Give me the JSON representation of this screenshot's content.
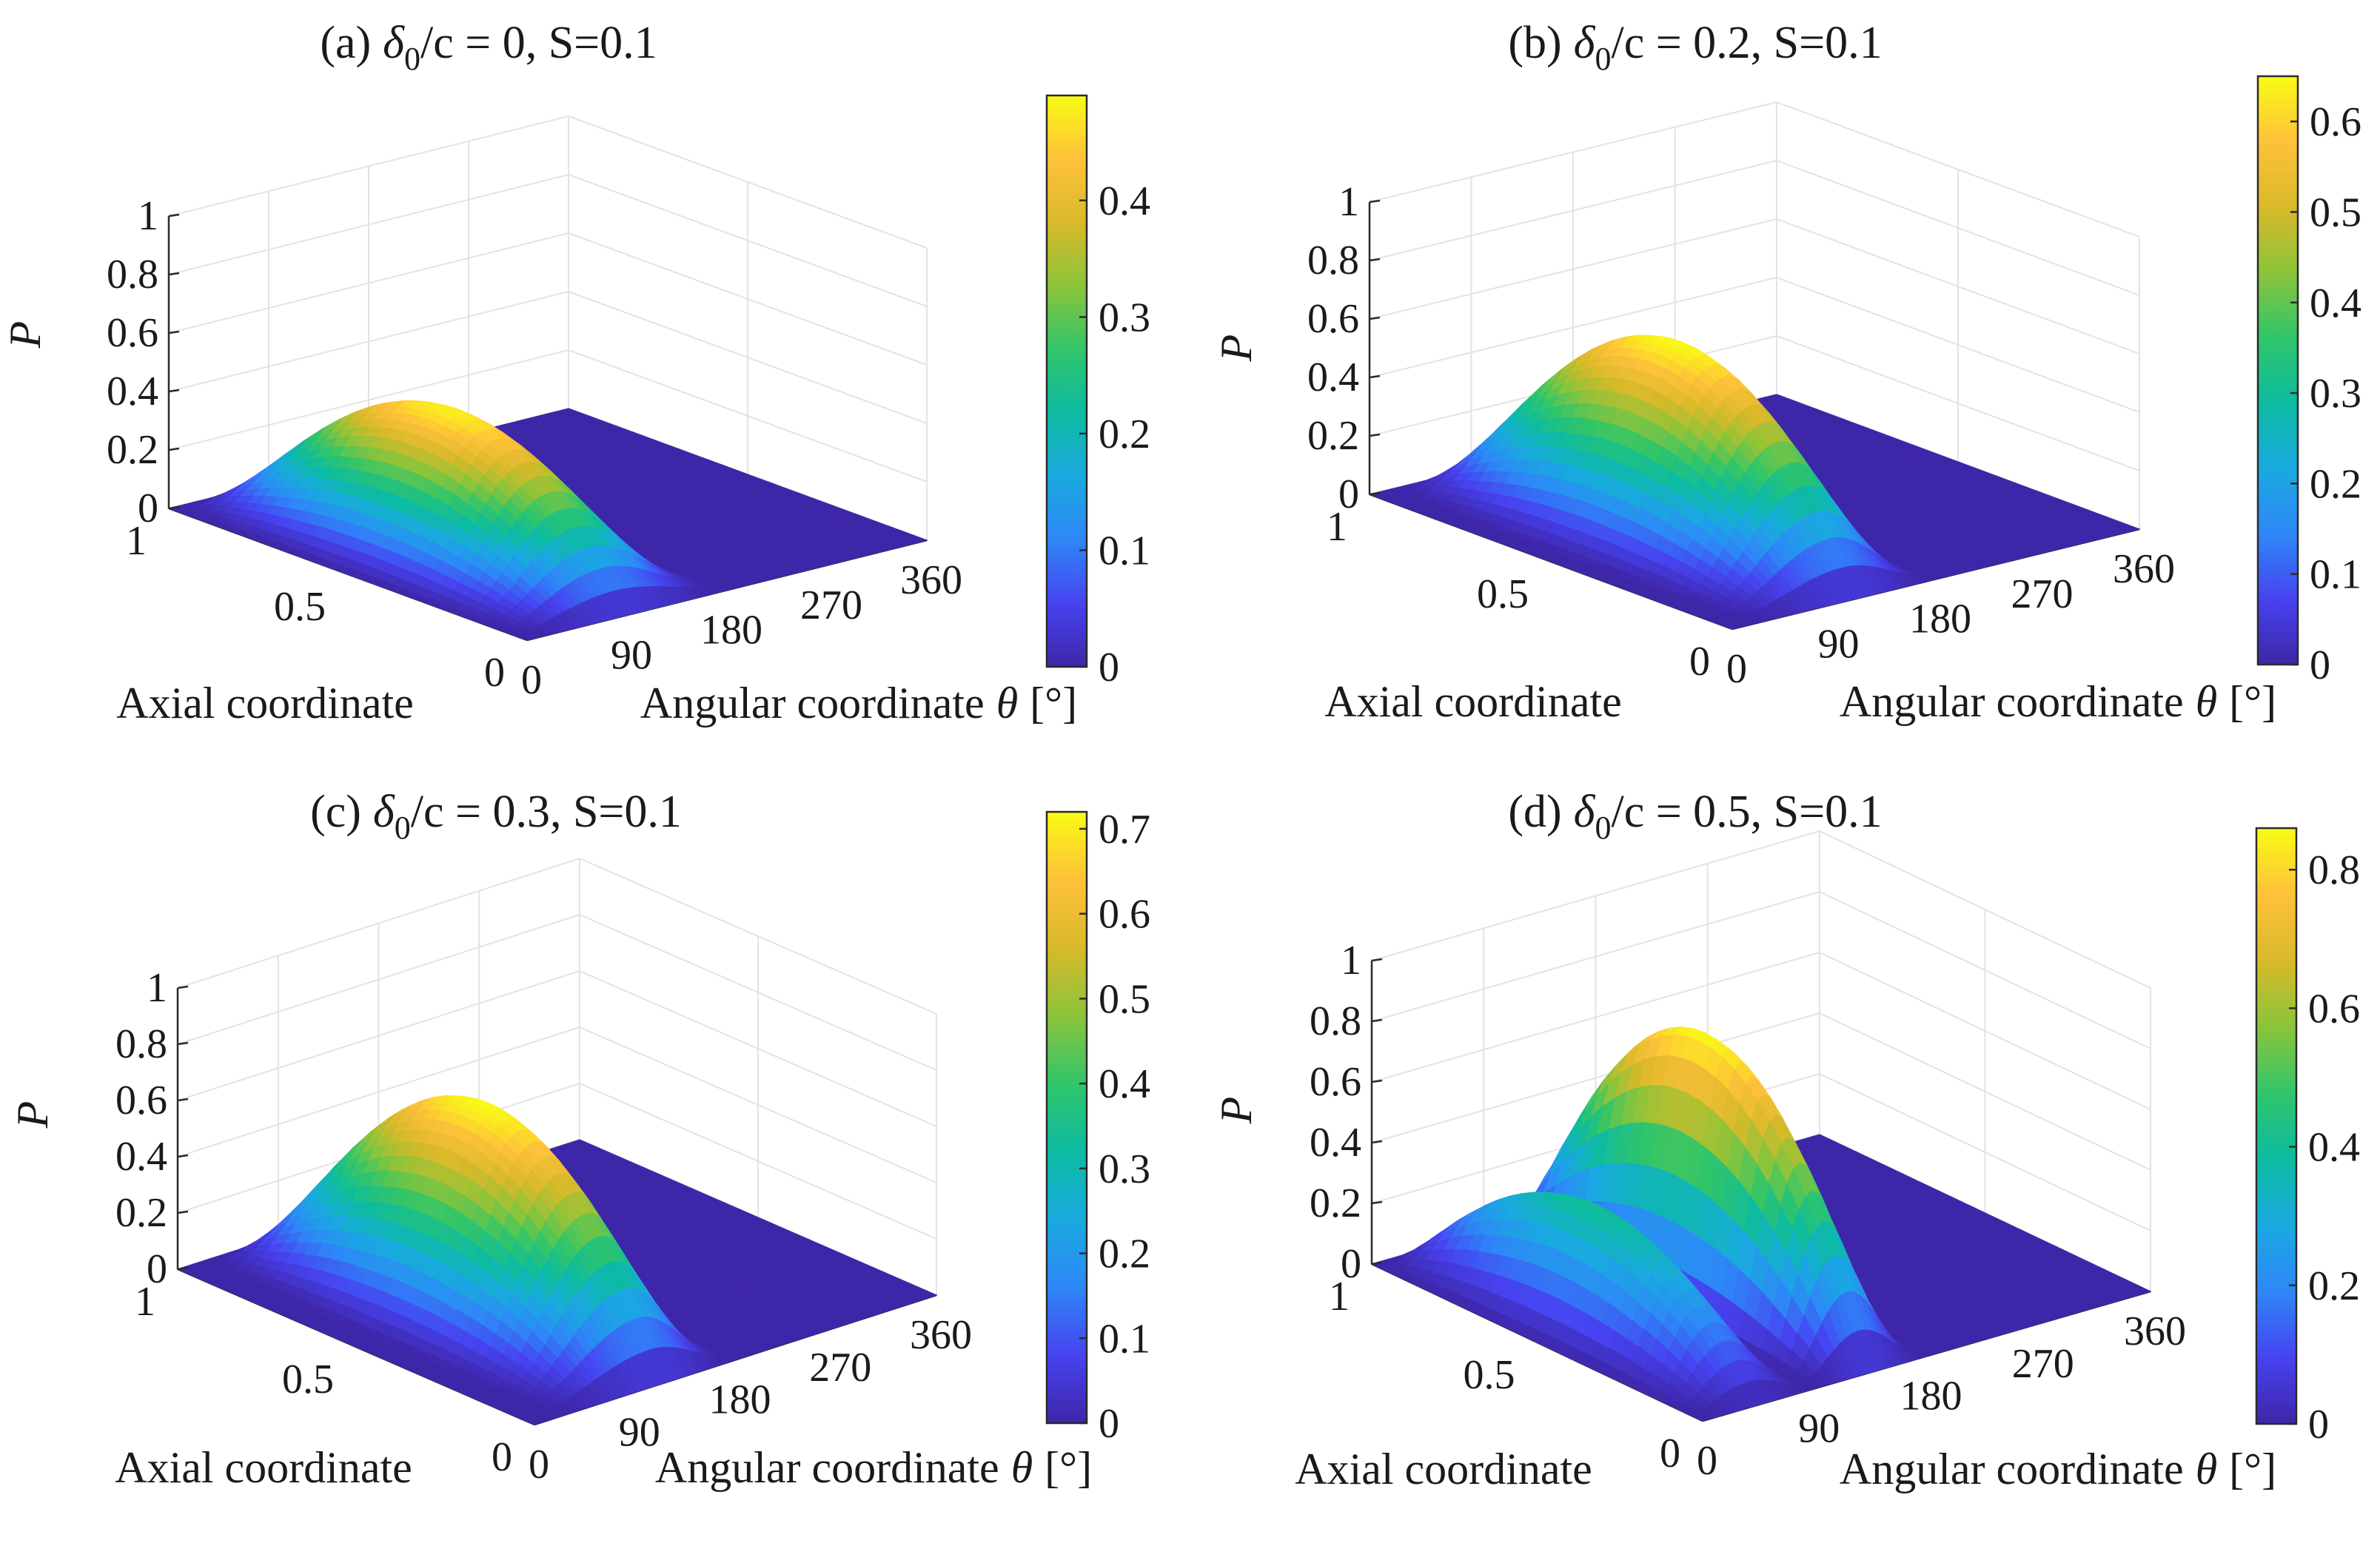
{
  "figure": {
    "axial_label": "Axial coordinate",
    "angular_label": "Angular coordinate",
    "theta_symbol": "θ",
    "degree_unit": "[°]",
    "p_label": "P",
    "colormap": [
      "#3e26a8",
      "#4743f0",
      "#2e87f7",
      "#1aa9e0",
      "#0cbba1",
      "#31c56a",
      "#8cc43a",
      "#d9b92a",
      "#fec13a",
      "#f9fb15"
    ]
  },
  "chart_data": [
    {
      "type": "surface",
      "panel": "a",
      "title_prefix": "(a)",
      "delta_symbol": "δ",
      "delta_sub": "0",
      "title_suffix": "/c = 0, S=0.1",
      "delta_over_c": 0,
      "S": 0.1,
      "xlabel": "Angular coordinate θ [°]",
      "ylabel": "Axial coordinate",
      "zlabel": "P",
      "x_ticks": [
        "0",
        "90",
        "180",
        "270",
        "360"
      ],
      "y_ticks": [
        "0",
        "0.5",
        "1"
      ],
      "z_ticks": [
        "0",
        "0.2",
        "0.4",
        "0.6",
        "0.8",
        "1"
      ],
      "xlim": [
        0,
        360
      ],
      "ylim": [
        0,
        1
      ],
      "zlim": [
        0,
        1
      ],
      "pressure_lobes": [
        {
          "theta_start": 0,
          "theta_end": 180,
          "peak_theta": 90,
          "peak_P": 0.48
        }
      ],
      "colorbar": {
        "range": [
          0,
          0.49
        ],
        "ticks": [
          "0",
          "0.1",
          "0.2",
          "0.3",
          "0.4"
        ]
      }
    },
    {
      "type": "surface",
      "panel": "b",
      "title_prefix": "(b)",
      "delta_symbol": "δ",
      "delta_sub": "0",
      "title_suffix": "/c = 0.2, S=0.1",
      "delta_over_c": 0.2,
      "S": 0.1,
      "xlabel": "Angular coordinate θ [°]",
      "ylabel": "Axial coordinate",
      "zlabel": "P",
      "x_ticks": [
        "0",
        "90",
        "180",
        "270",
        "360"
      ],
      "y_ticks": [
        "0",
        "0.5",
        "1"
      ],
      "z_ticks": [
        "0",
        "0.2",
        "0.4",
        "0.6",
        "0.8",
        "1"
      ],
      "xlim": [
        0,
        360
      ],
      "ylim": [
        0,
        1
      ],
      "zlim": [
        0,
        1
      ],
      "pressure_lobes": [
        {
          "theta_start": 15,
          "theta_end": 180,
          "peak_theta": 110,
          "peak_P": 0.65
        }
      ],
      "colorbar": {
        "range": [
          0,
          0.65
        ],
        "ticks": [
          "0",
          "0.1",
          "0.2",
          "0.3",
          "0.4",
          "0.5",
          "0.6"
        ]
      }
    },
    {
      "type": "surface",
      "panel": "c",
      "title_prefix": "(c)",
      "delta_symbol": "δ",
      "delta_sub": "0",
      "title_suffix": "/c = 0.3, S=0.1",
      "delta_over_c": 0.3,
      "S": 0.1,
      "xlabel": "Angular coordinate θ [°]",
      "ylabel": "Axial coordinate",
      "zlabel": "P",
      "x_ticks": [
        "0",
        "90",
        "180",
        "270",
        "360"
      ],
      "y_ticks": [
        "0",
        "0.5",
        "1"
      ],
      "z_ticks": [
        "0",
        "0.2",
        "0.4",
        "0.6",
        "0.8",
        "1"
      ],
      "xlim": [
        0,
        360
      ],
      "ylim": [
        0,
        1
      ],
      "zlim": [
        0,
        1
      ],
      "pressure_lobes": [
        {
          "theta_start": 20,
          "theta_end": 180,
          "peak_theta": 115,
          "peak_P": 0.72
        }
      ],
      "colorbar": {
        "range": [
          0,
          0.72
        ],
        "ticks": [
          "0",
          "0.1",
          "0.2",
          "0.3",
          "0.4",
          "0.5",
          "0.6",
          "0.7"
        ]
      }
    },
    {
      "type": "surface",
      "panel": "d",
      "title_prefix": "(d)",
      "delta_symbol": "δ",
      "delta_sub": "0",
      "title_suffix": "/c = 0.5, S=0.1",
      "delta_over_c": 0.5,
      "S": 0.1,
      "xlabel": "Angular coordinate θ [°]",
      "ylabel": "Axial coordinate",
      "zlabel": "P",
      "x_ticks": [
        "0",
        "90",
        "180",
        "270",
        "360"
      ],
      "y_ticks": [
        "0",
        "0.5",
        "1"
      ],
      "z_ticks": [
        "0",
        "0.2",
        "0.4",
        "0.6",
        "0.8",
        "1"
      ],
      "xlim": [
        0,
        360
      ],
      "ylim": [
        0,
        1
      ],
      "zlim": [
        0,
        1
      ],
      "pressure_lobes": [
        {
          "theta_start": 0,
          "theta_end": 90,
          "peak_theta": 45,
          "peak_P": 0.4
        },
        {
          "theta_start": 90,
          "theta_end": 180,
          "peak_theta": 135,
          "peak_P": 0.86
        }
      ],
      "colorbar": {
        "range": [
          0,
          0.86
        ],
        "ticks": [
          "0",
          "0.2",
          "0.4",
          "0.6",
          "0.8"
        ]
      }
    }
  ]
}
